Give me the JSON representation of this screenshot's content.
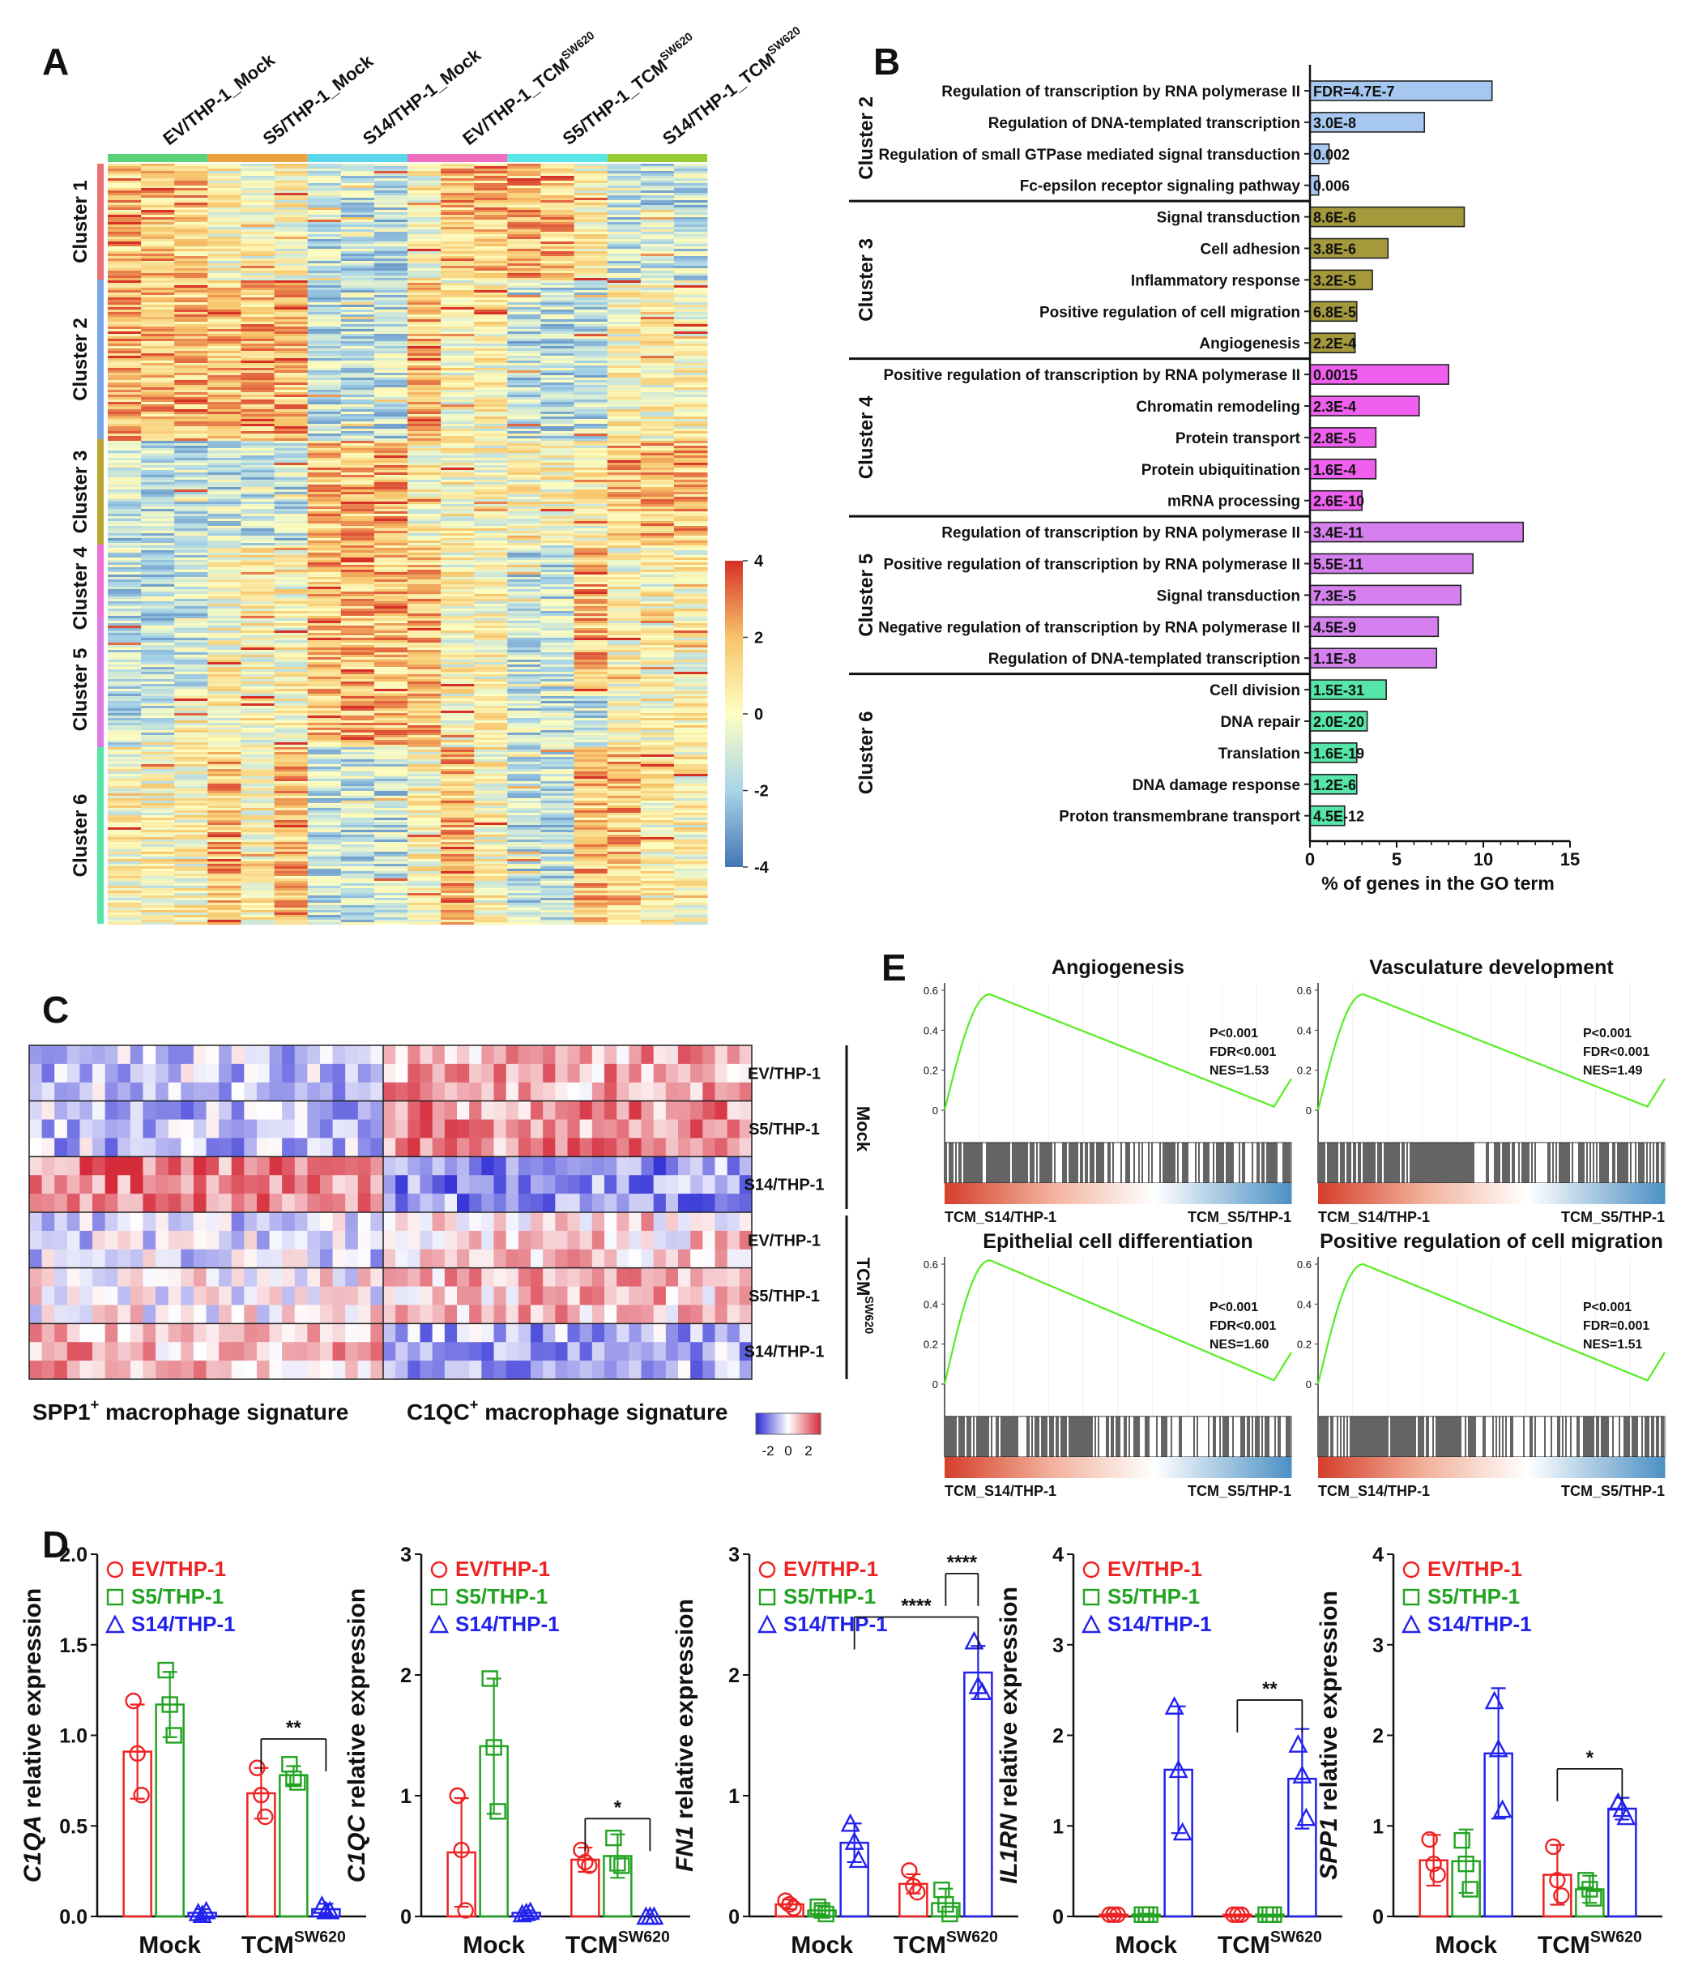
{
  "panels": {
    "A": "A",
    "B": "B",
    "C": "C",
    "D": "D",
    "E": "E"
  },
  "colors": {
    "heat_low": "#4575b4",
    "heat_mid": "#fdfec2",
    "heat_high": "#d73027",
    "sig_low": "#2b2bd6",
    "sig_high": "#d62b3a",
    "c2": "#a6c8f0",
    "c3": "#a49a3c",
    "c4": "#f05ff0",
    "c5": "#d580ee",
    "c6": "#55e6a8",
    "ev": "#ee2222",
    "s5": "#22a322",
    "s14": "#2222ee",
    "gsea_line": "#55ee22"
  },
  "chart_data": [
    {
      "id": "A",
      "type": "heatmap",
      "columns": [
        "EV/THP-1_Mock",
        "S5/THP-1_Mock",
        "S14/THP-1_Mock",
        "EV/THP-1_TCM^SW620",
        "S5/THP-1_TCM^SW620",
        "S14/THP-1_TCM^SW620"
      ],
      "column_colors": [
        "#5ad27a",
        "#e9a23c",
        "#59d6ea",
        "#ee6ec0",
        "#59e6e6",
        "#99cc33"
      ],
      "clusters": [
        {
          "label": "Cluster 1",
          "color": "#ec6f74"
        },
        {
          "label": "Cluster 2",
          "color": "#7aa8e6"
        },
        {
          "label": "Cluster 3",
          "color": "#b8a62e"
        },
        {
          "label": "Cluster 4",
          "color": "#ee70d6"
        },
        {
          "label": "Cluster 5",
          "color": "#e07ae6"
        },
        {
          "label": "Cluster 6",
          "color": "#55e6a8"
        }
      ],
      "scale": {
        "min": -4,
        "max": 4,
        "ticks": [
          "4",
          "2",
          "0",
          "-2",
          "-4"
        ]
      }
    },
    {
      "id": "B",
      "type": "bar",
      "orientation": "horizontal",
      "xlabel": "% of genes in the GO term",
      "xlim": [
        0,
        15
      ],
      "xticks": [
        "0",
        "5",
        "10",
        "15"
      ],
      "groups": [
        {
          "cluster": "Cluster 2",
          "items": [
            {
              "term": "Regulation of transcription by RNA polymerase II",
              "value": 10.5,
              "fdr": "FDR=4.7E-7"
            },
            {
              "term": "Regulation of DNA-templated transcription",
              "value": 6.6,
              "fdr": "3.0E-8"
            },
            {
              "term": "Regulation of small GTPase mediated signal transduction",
              "value": 1.1,
              "fdr": "0.002"
            },
            {
              "term": "Fc-epsilon receptor signaling pathway",
              "value": 0.5,
              "fdr": "0.006"
            }
          ]
        },
        {
          "cluster": "Cluster 3",
          "items": [
            {
              "term": "Signal transduction",
              "value": 8.9,
              "fdr": "8.6E-6"
            },
            {
              "term": "Cell adhesion",
              "value": 4.5,
              "fdr": "3.8E-6"
            },
            {
              "term": "Inflammatory response",
              "value": 3.6,
              "fdr": "3.2E-5"
            },
            {
              "term": "Positive regulation of cell migration",
              "value": 2.7,
              "fdr": "6.8E-5"
            },
            {
              "term": "Angiogenesis",
              "value": 2.6,
              "fdr": "2.2E-4"
            }
          ]
        },
        {
          "cluster": "Cluster 4",
          "items": [
            {
              "term": "Positive regulation of transcription by RNA polymerase II",
              "value": 8.0,
              "fdr": "0.0015"
            },
            {
              "term": "Chromatin remodeling",
              "value": 6.3,
              "fdr": "2.3E-4"
            },
            {
              "term": "Protein transport",
              "value": 3.8,
              "fdr": "2.8E-5"
            },
            {
              "term": "Protein ubiquitination",
              "value": 3.8,
              "fdr": "1.6E-4"
            },
            {
              "term": "mRNA processing",
              "value": 3.0,
              "fdr": "2.6E-10"
            }
          ]
        },
        {
          "cluster": "Cluster 5",
          "items": [
            {
              "term": "Regulation of transcription by RNA polymerase II",
              "value": 12.3,
              "fdr": "3.4E-11"
            },
            {
              "term": "Positive regulation of transcription by RNA polymerase II",
              "value": 9.4,
              "fdr": "5.5E-11"
            },
            {
              "term": "Signal transduction",
              "value": 8.7,
              "fdr": "7.3E-5"
            },
            {
              "term": "Negative regulation of transcription by RNA polymerase II",
              "value": 7.4,
              "fdr": "4.5E-9"
            },
            {
              "term": "Regulation of DNA-templated transcription",
              "value": 7.3,
              "fdr": "1.1E-8"
            }
          ]
        },
        {
          "cluster": "Cluster 6",
          "items": [
            {
              "term": "Cell division",
              "value": 4.4,
              "fdr": "1.5E-31"
            },
            {
              "term": "DNA repair",
              "value": 3.3,
              "fdr": "2.0E-20"
            },
            {
              "term": "Translation",
              "value": 2.7,
              "fdr": "1.6E-19"
            },
            {
              "term": "DNA damage response",
              "value": 2.7,
              "fdr": "1.2E-6"
            },
            {
              "term": "Proton transmembrane transport",
              "value": 2.0,
              "fdr": "4.5E-12"
            }
          ]
        }
      ]
    },
    {
      "id": "C",
      "type": "heatmap",
      "rows": [
        "EV/THP-1",
        "S5/THP-1",
        "S14/THP-1",
        "EV/THP-1",
        "S5/THP-1",
        "S14/THP-1"
      ],
      "row_groups": [
        {
          "label": "Mock"
        },
        {
          "label": "TCM",
          "sup": "SW620"
        }
      ],
      "column_groups": [
        {
          "label": "SPP1",
          "sup": "+",
          "suffix": " macrophage signature"
        },
        {
          "label": "C1QC",
          "sup": "+",
          "suffix": " macrophage signature"
        }
      ],
      "scale_ticks": [
        "-2",
        "0",
        "2"
      ]
    },
    {
      "id": "E",
      "type": "line",
      "subtype": "GSEA enrichment plot",
      "left_label": "TCM_S14/THP-1",
      "right_label": "TCM_S5/THP-1",
      "yticks": [
        "0.6",
        "0.4",
        "0.2",
        "0"
      ],
      "plots": [
        {
          "title": "Angiogenesis",
          "p": "P<0.001",
          "fdr": "FDR<0.001",
          "nes": "NES=1.53",
          "peak_es": 0.58
        },
        {
          "title": "Vasculature development",
          "p": "P<0.001",
          "fdr": "FDR<0.001",
          "nes": "NES=1.49",
          "peak_es": 0.58
        },
        {
          "title": "Epithelial cell differentiation",
          "p": "P<0.001",
          "fdr": "FDR<0.001",
          "nes": "NES=1.60",
          "peak_es": 0.62
        },
        {
          "title": "Positive regulation of cell migration",
          "p": "P<0.001",
          "fdr": "FDR=0.001",
          "nes": "NES=1.51",
          "peak_es": 0.6
        }
      ]
    },
    {
      "id": "D",
      "type": "bar",
      "subtype": "grouped bar with points and error bars",
      "legend": [
        "EV/THP-1",
        "S5/THP-1",
        "S14/THP-1"
      ],
      "x_groups": [
        {
          "label": "Mock"
        },
        {
          "label": "TCM",
          "sup": "SW620"
        }
      ],
      "plots": [
        {
          "gene": "C1QA",
          "ylabel_suffix": " relative expression",
          "ylim": [
            0,
            2.0
          ],
          "yticks": [
            "0.0",
            "0.5",
            "1.0",
            "1.5",
            "2.0"
          ],
          "means": [
            [
              0.91,
              1.17,
              0.02
            ],
            [
              0.68,
              0.78,
              0.04
            ]
          ],
          "err": [
            [
              0.26,
              0.18,
              0.02
            ],
            [
              0.14,
              0.05,
              0.03
            ]
          ],
          "points": [
            [
              [
                1.19,
                0.9,
                0.67
              ],
              [
                1.36,
                1.17,
                1.0
              ],
              [
                0.02,
                0.01,
                0.03
              ]
            ],
            [
              [
                0.82,
                0.67,
                0.55
              ],
              [
                0.84,
                0.76,
                0.74
              ],
              [
                0.06,
                0.03,
                0.03
              ]
            ]
          ],
          "sig": [
            {
              "between": [
                [
                  1,
                  0
                ],
                [
                  1,
                  2
                ]
              ],
              "label": "**"
            }
          ]
        },
        {
          "gene": "C1QC",
          "ylabel_suffix": " relative expression",
          "ylim": [
            0,
            3
          ],
          "yticks": [
            "0",
            "1",
            "2",
            "3"
          ],
          "means": [
            [
              0.53,
              1.41,
              0.03
            ],
            [
              0.47,
              0.5,
              0.0
            ]
          ],
          "err": [
            [
              0.45,
              0.56,
              0.02
            ],
            [
              0.1,
              0.18,
              0.0
            ]
          ],
          "points": [
            [
              [
                1.0,
                0.55,
                0.05
              ],
              [
                1.97,
                1.4,
                0.87
              ],
              [
                0.02,
                0.03,
                0.04
              ]
            ],
            [
              [
                0.55,
                0.45,
                0.42
              ],
              [
                0.65,
                0.44,
                0.42
              ],
              [
                0.0,
                0.0,
                0.0
              ]
            ]
          ],
          "sig": [
            {
              "between": [
                [
                  1,
                  0
                ],
                [
                  1,
                  2
                ]
              ],
              "label": "*"
            }
          ]
        },
        {
          "gene": "FN1",
          "ylabel_suffix": " relative expression",
          "ylim": [
            0,
            3
          ],
          "yticks": [
            "0",
            "1",
            "2",
            "3"
          ],
          "means": [
            [
              0.1,
              0.05,
              0.61
            ],
            [
              0.27,
              0.11,
              2.02
            ]
          ],
          "err": [
            [
              0.04,
              0.04,
              0.16
            ],
            [
              0.08,
              0.12,
              0.22
            ]
          ],
          "points": [
            [
              [
                0.13,
                0.1,
                0.07
              ],
              [
                0.08,
                0.05,
                0.02
              ],
              [
                0.77,
                0.62,
                0.47
              ]
            ],
            [
              [
                0.38,
                0.25,
                0.2
              ],
              [
                0.22,
                0.1,
                0.02
              ],
              [
                2.28,
                1.91,
                1.86
              ]
            ]
          ],
          "sig": [
            {
              "between": [
                [
                  0,
                  2
                ],
                [
                  1,
                  2
                ]
              ],
              "label": "****"
            },
            {
              "between": [
                [
                  1,
                  1
                ],
                [
                  1,
                  2
                ]
              ],
              "label": "****"
            }
          ]
        },
        {
          "gene": "IL1RN",
          "ylabel_suffix": " relative expression",
          "ylim": [
            0,
            4
          ],
          "yticks": [
            "0",
            "1",
            "2",
            "3",
            "4"
          ],
          "means": [
            [
              0.02,
              0.02,
              1.62
            ],
            [
              0.02,
              0.02,
              1.52
            ]
          ],
          "err": [
            [
              0.01,
              0.01,
              0.7
            ],
            [
              0.0,
              0.0,
              0.55
            ]
          ],
          "points": [
            [
              [
                0.02,
                0.02,
                0.02
              ],
              [
                0.02,
                0.02,
                0.02
              ],
              [
                2.32,
                1.62,
                0.93
              ]
            ],
            [
              [
                0.02,
                0.02,
                0.02
              ],
              [
                0.02,
                0.02,
                0.02
              ],
              [
                1.9,
                1.56,
                1.09
              ]
            ]
          ],
          "sig": [
            {
              "between": [
                [
                  1,
                  0
                ],
                [
                  1,
                  2
                ]
              ],
              "label": "**"
            }
          ]
        },
        {
          "gene": "SPP1",
          "ylabel_suffix": " relative expression",
          "ylim": [
            0,
            4
          ],
          "yticks": [
            "0",
            "1",
            "2",
            "3",
            "4"
          ],
          "means": [
            [
              0.62,
              0.61,
              1.8
            ],
            [
              0.46,
              0.3,
              1.19
            ]
          ],
          "err": [
            [
              0.28,
              0.35,
              0.72
            ],
            [
              0.33,
              0.15,
              0.12
            ]
          ],
          "points": [
            [
              [
                0.85,
                0.58,
                0.46
              ],
              [
                0.84,
                0.58,
                0.3
              ],
              [
                2.38,
                1.85,
                1.18
              ]
            ],
            [
              [
                0.77,
                0.4,
                0.23
              ],
              [
                0.4,
                0.3,
                0.2
              ],
              [
                1.26,
                1.19,
                1.1
              ]
            ]
          ],
          "sig": [
            {
              "between": [
                [
                  1,
                  0
                ],
                [
                  1,
                  2
                ]
              ],
              "label": "*"
            }
          ]
        }
      ]
    }
  ]
}
